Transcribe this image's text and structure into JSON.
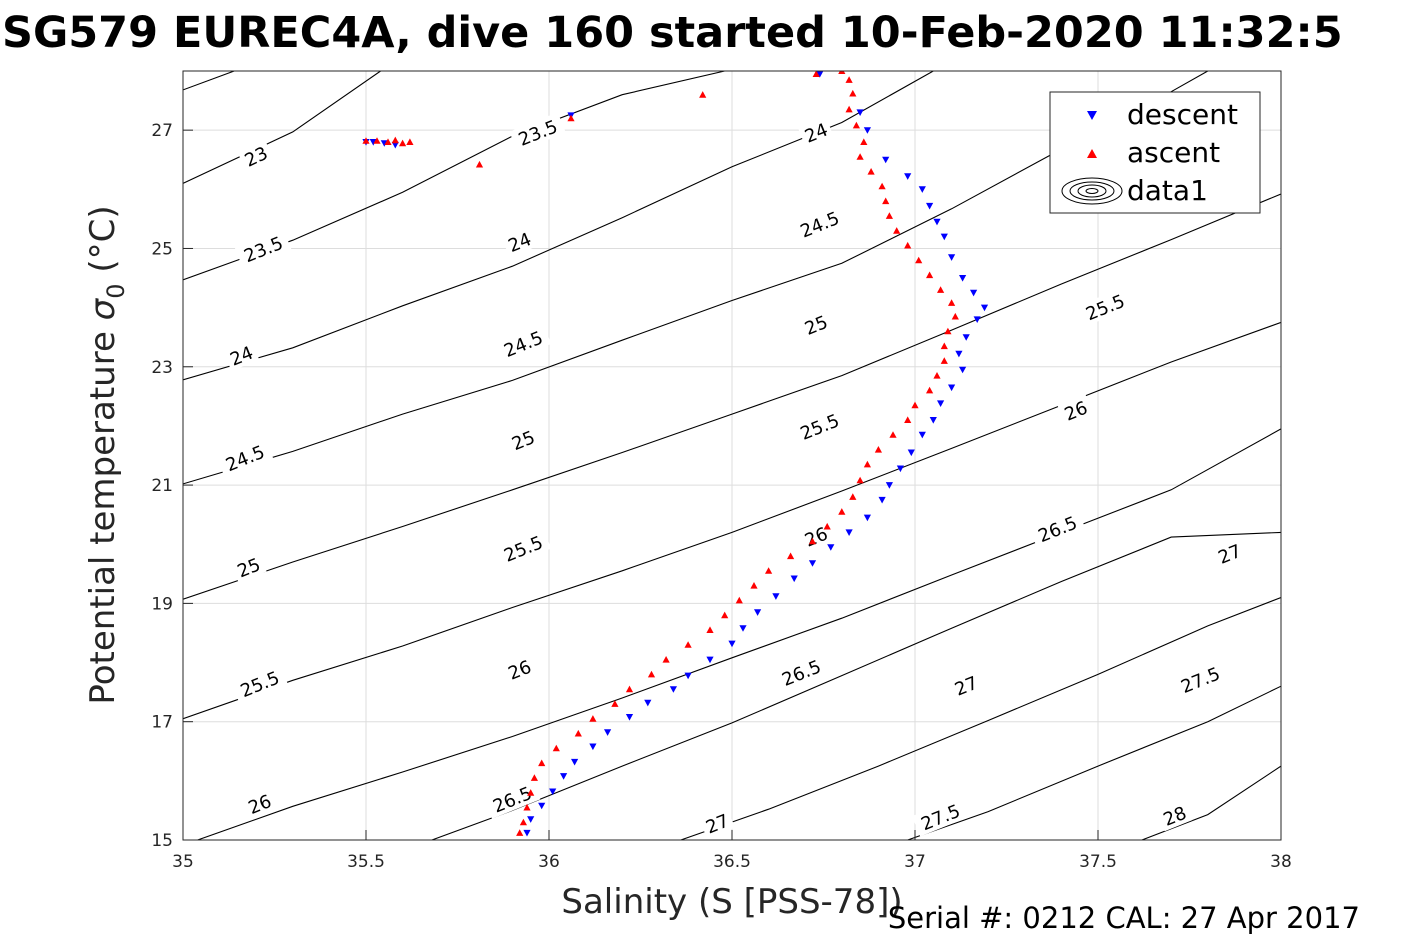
{
  "chart_data": {
    "type": "scatter",
    "title": "SG579 EUREC4A, dive 160 started 10-Feb-2020 11:32:5",
    "xlabel": "Salinity (S [PSS-78])",
    "ylabel_main": "Potential temperature ",
    "ylabel_symbol": "σ",
    "ylabel_subscript": "0",
    "ylabel_unit": " (°C)",
    "xlim": [
      35,
      38
    ],
    "ylim": [
      15,
      28
    ],
    "xticks": [
      "35",
      "35.5",
      "36",
      "36.5",
      "37",
      "37.5",
      "38"
    ],
    "yticks": [
      "15",
      "17",
      "19",
      "21",
      "23",
      "25",
      "27"
    ],
    "grid": true,
    "legend_position": "top-right",
    "legend": [
      "descent",
      "ascent",
      "data1"
    ],
    "footer": "Serial #: 0212  CAL: 27 Apr 2017",
    "colors": {
      "descent": "#0000ff",
      "ascent": "#ff0000",
      "contour": "#000000",
      "grid": "#dddddd"
    },
    "density_contours": [
      {
        "level": "23",
        "points": [
          [
            35.0,
            27.68
          ],
          [
            35.14,
            28.0
          ]
        ]
      },
      {
        "level": "23",
        "points": [
          [
            35.0,
            26.1
          ],
          [
            35.3,
            26.97
          ],
          [
            35.54,
            28.0
          ]
        ]
      },
      {
        "level": "23.5",
        "points": [
          [
            35.0,
            24.47
          ],
          [
            35.3,
            25.14
          ],
          [
            35.6,
            25.95
          ],
          [
            35.9,
            26.9
          ],
          [
            36.2,
            27.6
          ],
          [
            36.48,
            28.0
          ]
        ]
      },
      {
        "level": "24",
        "points": [
          [
            35.0,
            22.78
          ],
          [
            35.3,
            23.32
          ],
          [
            35.6,
            24.03
          ],
          [
            35.9,
            24.7
          ],
          [
            36.2,
            25.52
          ],
          [
            36.5,
            26.38
          ],
          [
            36.8,
            27.13
          ],
          [
            37.05,
            28.0
          ]
        ]
      },
      {
        "level": "24.5",
        "points": [
          [
            35.0,
            21.02
          ],
          [
            35.3,
            21.57
          ],
          [
            35.6,
            22.2
          ],
          [
            35.9,
            22.77
          ],
          [
            36.2,
            23.45
          ],
          [
            36.5,
            24.12
          ],
          [
            36.8,
            24.75
          ],
          [
            37.1,
            25.67
          ],
          [
            37.4,
            26.68
          ],
          [
            37.7,
            27.65
          ],
          [
            37.8,
            28.0
          ]
        ]
      },
      {
        "level": "25",
        "points": [
          [
            35.0,
            19.07
          ],
          [
            35.3,
            19.7
          ],
          [
            35.6,
            20.3
          ],
          [
            35.9,
            20.92
          ],
          [
            36.2,
            21.55
          ],
          [
            36.5,
            22.2
          ],
          [
            36.8,
            22.85
          ],
          [
            37.1,
            23.62
          ],
          [
            37.4,
            24.4
          ],
          [
            37.7,
            25.15
          ],
          [
            38.0,
            25.92
          ]
        ]
      },
      {
        "level": "25.5",
        "points": [
          [
            35.0,
            17.05
          ],
          [
            35.3,
            17.7
          ],
          [
            35.6,
            18.28
          ],
          [
            35.9,
            18.93
          ],
          [
            36.2,
            19.55
          ],
          [
            36.5,
            20.2
          ],
          [
            36.8,
            20.9
          ],
          [
            37.1,
            21.62
          ],
          [
            37.4,
            22.35
          ],
          [
            37.7,
            23.08
          ],
          [
            38.0,
            23.75
          ]
        ]
      },
      {
        "level": "26",
        "points": [
          [
            35.04,
            15.0
          ],
          [
            35.3,
            15.57
          ],
          [
            35.6,
            16.15
          ],
          [
            35.9,
            16.75
          ],
          [
            36.2,
            17.4
          ],
          [
            36.5,
            18.08
          ],
          [
            36.8,
            18.75
          ],
          [
            37.1,
            19.48
          ],
          [
            37.4,
            20.2
          ],
          [
            37.7,
            20.92
          ],
          [
            38.0,
            21.95
          ]
        ]
      },
      {
        "level": "26.5",
        "points": [
          [
            35.68,
            15.0
          ],
          [
            35.9,
            15.5
          ],
          [
            36.2,
            16.25
          ],
          [
            36.5,
            16.98
          ],
          [
            36.8,
            17.78
          ],
          [
            37.1,
            18.58
          ],
          [
            37.4,
            19.37
          ],
          [
            37.7,
            20.12
          ],
          [
            38.0,
            20.2
          ]
        ]
      },
      {
        "level": "27",
        "points": [
          [
            36.36,
            15.0
          ],
          [
            36.6,
            15.52
          ],
          [
            36.9,
            16.25
          ],
          [
            37.2,
            17.02
          ],
          [
            37.5,
            17.8
          ],
          [
            37.8,
            18.62
          ],
          [
            38.0,
            19.1
          ]
        ]
      },
      {
        "level": "27.5",
        "points": [
          [
            36.98,
            15.0
          ],
          [
            37.2,
            15.48
          ],
          [
            37.5,
            16.25
          ],
          [
            37.8,
            17.0
          ],
          [
            38.0,
            17.6
          ]
        ]
      },
      {
        "level": "28",
        "points": [
          [
            37.62,
            15.0
          ],
          [
            37.8,
            15.43
          ],
          [
            38.0,
            16.25
          ]
        ]
      }
    ],
    "contour_labels": [
      {
        "text": "23",
        "x": 35.2,
        "y": 26.55,
        "angle": -25
      },
      {
        "text": "23.5",
        "x": 35.22,
        "y": 24.98,
        "angle": -22
      },
      {
        "text": "23.5",
        "x": 35.97,
        "y": 26.95,
        "angle": -22
      },
      {
        "text": "24",
        "x": 35.16,
        "y": 23.18,
        "angle": -22
      },
      {
        "text": "24",
        "x": 35.92,
        "y": 25.1,
        "angle": -22
      },
      {
        "text": "24",
        "x": 36.73,
        "y": 26.95,
        "angle": -22
      },
      {
        "text": "24.5",
        "x": 35.17,
        "y": 21.45,
        "angle": -22
      },
      {
        "text": "24.5",
        "x": 35.93,
        "y": 23.38,
        "angle": -22
      },
      {
        "text": "24.5",
        "x": 36.74,
        "y": 25.4,
        "angle": -22
      },
      {
        "text": "25",
        "x": 35.18,
        "y": 19.6,
        "angle": -22
      },
      {
        "text": "25",
        "x": 35.93,
        "y": 21.75,
        "angle": -22
      },
      {
        "text": "25",
        "x": 36.73,
        "y": 23.7,
        "angle": -22
      },
      {
        "text": "25.5",
        "x": 35.21,
        "y": 17.63,
        "angle": -22
      },
      {
        "text": "25.5",
        "x": 35.93,
        "y": 19.92,
        "angle": -22
      },
      {
        "text": "25.5",
        "x": 36.74,
        "y": 21.98,
        "angle": -22
      },
      {
        "text": "25.5",
        "x": 37.52,
        "y": 24.0,
        "angle": -22
      },
      {
        "text": "26",
        "x": 35.21,
        "y": 15.6,
        "angle": -22
      },
      {
        "text": "26",
        "x": 35.92,
        "y": 17.87,
        "angle": -22
      },
      {
        "text": "26",
        "x": 36.73,
        "y": 20.12,
        "angle": -22
      },
      {
        "text": "26",
        "x": 37.44,
        "y": 22.25,
        "angle": -22
      },
      {
        "text": "26.5",
        "x": 35.9,
        "y": 15.68,
        "angle": -22
      },
      {
        "text": "26.5",
        "x": 36.69,
        "y": 17.82,
        "angle": -22
      },
      {
        "text": "26.5",
        "x": 37.39,
        "y": 20.25,
        "angle": -22
      },
      {
        "text": "27",
        "x": 36.46,
        "y": 15.27,
        "angle": -22
      },
      {
        "text": "27",
        "x": 37.14,
        "y": 17.6,
        "angle": -22
      },
      {
        "text": "27",
        "x": 37.86,
        "y": 19.83,
        "angle": -22
      },
      {
        "text": "27.5",
        "x": 37.07,
        "y": 15.38,
        "angle": -22
      },
      {
        "text": "27.5",
        "x": 37.78,
        "y": 17.7,
        "angle": -22
      },
      {
        "text": "28",
        "x": 37.71,
        "y": 15.4,
        "angle": -22
      }
    ],
    "series": [
      {
        "name": "descent",
        "marker": "triangle-down",
        "points": [
          [
            35.5,
            26.8
          ],
          [
            35.52,
            26.8
          ],
          [
            35.55,
            26.78
          ],
          [
            35.58,
            26.75
          ],
          [
            36.06,
            27.25
          ],
          [
            36.74,
            27.95
          ],
          [
            36.85,
            27.3
          ],
          [
            36.87,
            27.0
          ],
          [
            36.92,
            26.5
          ],
          [
            36.98,
            26.22
          ],
          [
            37.02,
            26.0
          ],
          [
            37.04,
            25.72
          ],
          [
            37.06,
            25.45
          ],
          [
            37.08,
            25.2
          ],
          [
            37.1,
            24.85
          ],
          [
            37.13,
            24.5
          ],
          [
            37.16,
            24.25
          ],
          [
            37.19,
            24.0
          ],
          [
            37.17,
            23.8
          ],
          [
            37.14,
            23.5
          ],
          [
            37.12,
            23.22
          ],
          [
            37.13,
            22.95
          ],
          [
            37.1,
            22.65
          ],
          [
            37.07,
            22.38
          ],
          [
            37.05,
            22.1
          ],
          [
            37.02,
            21.85
          ],
          [
            36.99,
            21.55
          ],
          [
            36.96,
            21.28
          ],
          [
            36.93,
            21.0
          ],
          [
            36.91,
            20.75
          ],
          [
            36.87,
            20.45
          ],
          [
            36.82,
            20.2
          ],
          [
            36.77,
            19.95
          ],
          [
            36.72,
            19.68
          ],
          [
            36.67,
            19.42
          ],
          [
            36.62,
            19.12
          ],
          [
            36.57,
            18.85
          ],
          [
            36.53,
            18.58
          ],
          [
            36.5,
            18.32
          ],
          [
            36.44,
            18.05
          ],
          [
            36.38,
            17.78
          ],
          [
            36.34,
            17.55
          ],
          [
            36.27,
            17.32
          ],
          [
            36.22,
            17.08
          ],
          [
            36.16,
            16.82
          ],
          [
            36.12,
            16.58
          ],
          [
            36.07,
            16.32
          ],
          [
            36.04,
            16.08
          ],
          [
            36.01,
            15.82
          ],
          [
            35.98,
            15.58
          ],
          [
            35.95,
            15.35
          ],
          [
            35.94,
            15.12
          ]
        ]
      },
      {
        "name": "ascent",
        "marker": "triangle-up",
        "points": [
          [
            35.5,
            26.82
          ],
          [
            35.53,
            26.82
          ],
          [
            35.56,
            26.8
          ],
          [
            35.58,
            26.83
          ],
          [
            35.6,
            26.78
          ],
          [
            35.62,
            26.8
          ],
          [
            35.81,
            26.42
          ],
          [
            36.06,
            27.2
          ],
          [
            36.42,
            27.6
          ],
          [
            36.73,
            27.95
          ],
          [
            36.8,
            28.0
          ],
          [
            36.82,
            27.85
          ],
          [
            36.83,
            27.62
          ],
          [
            36.82,
            27.35
          ],
          [
            36.84,
            27.08
          ],
          [
            36.86,
            26.8
          ],
          [
            36.85,
            26.55
          ],
          [
            36.88,
            26.3
          ],
          [
            36.91,
            26.05
          ],
          [
            36.92,
            25.8
          ],
          [
            36.93,
            25.55
          ],
          [
            36.95,
            25.3
          ],
          [
            36.98,
            25.05
          ],
          [
            37.01,
            24.8
          ],
          [
            37.04,
            24.55
          ],
          [
            37.07,
            24.3
          ],
          [
            37.1,
            24.08
          ],
          [
            37.11,
            23.85
          ],
          [
            37.09,
            23.6
          ],
          [
            37.08,
            23.35
          ],
          [
            37.08,
            23.1
          ],
          [
            37.06,
            22.85
          ],
          [
            37.04,
            22.6
          ],
          [
            37.0,
            22.35
          ],
          [
            36.98,
            22.1
          ],
          [
            36.94,
            21.85
          ],
          [
            36.9,
            21.6
          ],
          [
            36.87,
            21.35
          ],
          [
            36.85,
            21.08
          ],
          [
            36.83,
            20.8
          ],
          [
            36.8,
            20.55
          ],
          [
            36.76,
            20.3
          ],
          [
            36.72,
            20.05
          ],
          [
            36.66,
            19.8
          ],
          [
            36.6,
            19.55
          ],
          [
            36.56,
            19.3
          ],
          [
            36.52,
            19.05
          ],
          [
            36.48,
            18.8
          ],
          [
            36.44,
            18.55
          ],
          [
            36.38,
            18.3
          ],
          [
            36.32,
            18.05
          ],
          [
            36.28,
            17.8
          ],
          [
            36.22,
            17.55
          ],
          [
            36.18,
            17.3
          ],
          [
            36.12,
            17.05
          ],
          [
            36.08,
            16.8
          ],
          [
            36.02,
            16.55
          ],
          [
            35.98,
            16.3
          ],
          [
            35.96,
            16.05
          ],
          [
            35.95,
            15.8
          ],
          [
            35.94,
            15.55
          ],
          [
            35.93,
            15.3
          ],
          [
            35.92,
            15.12
          ]
        ]
      }
    ]
  }
}
